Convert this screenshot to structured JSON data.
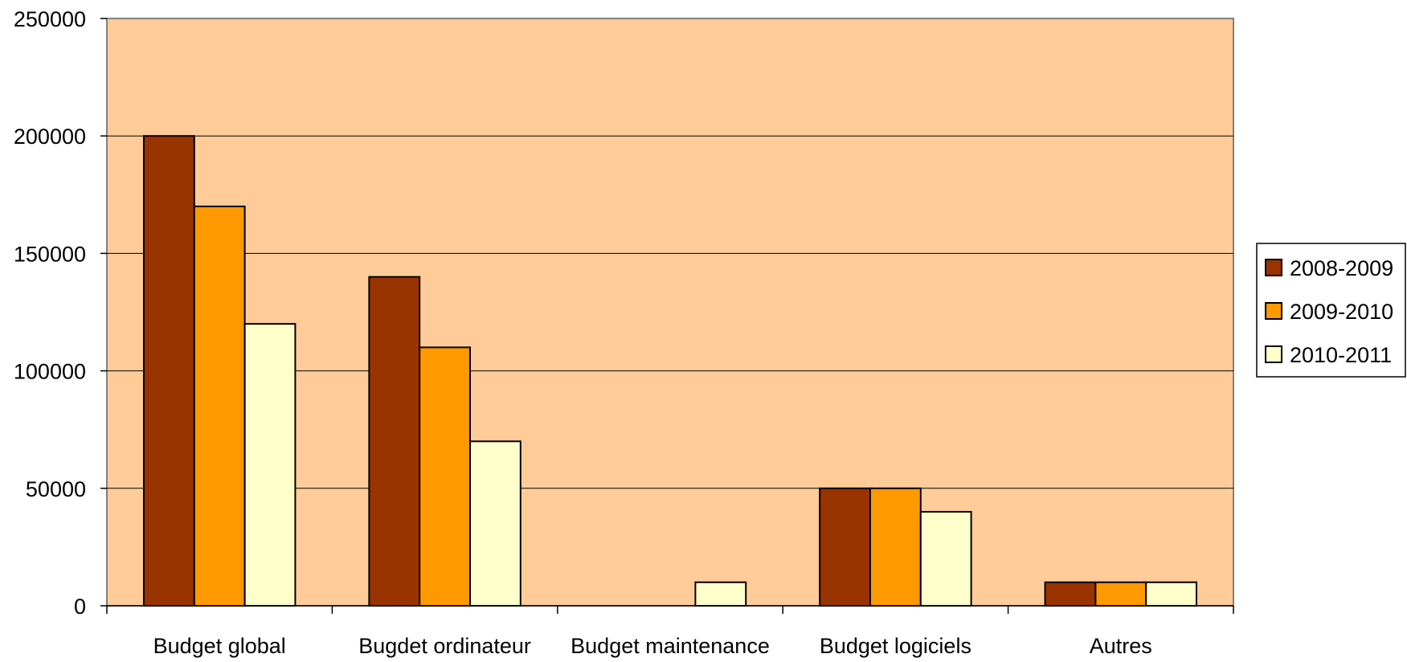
{
  "chart_data": {
    "type": "bar",
    "title": "",
    "xlabel": "",
    "ylabel": "",
    "categories": [
      "Budget global",
      "Bugdet ordinateur",
      "Budget maintenance",
      "Budget logiciels",
      "Autres"
    ],
    "series": [
      {
        "name": "2008-2009",
        "color": "#993300",
        "values": [
          200000,
          140000,
          0,
          50000,
          10000
        ]
      },
      {
        "name": "2009-2010",
        "color": "#FF9900",
        "values": [
          170000,
          110000,
          0,
          50000,
          10000
        ]
      },
      {
        "name": "2010-2011",
        "color": "#FFFFCC",
        "values": [
          120000,
          70000,
          10000,
          40000,
          10000
        ]
      }
    ],
    "ylim": [
      0,
      250000
    ],
    "yticks": [
      0,
      50000,
      100000,
      150000,
      200000,
      250000
    ],
    "grid": true,
    "legend_position": "right",
    "plot_background": "#FFCC99"
  }
}
